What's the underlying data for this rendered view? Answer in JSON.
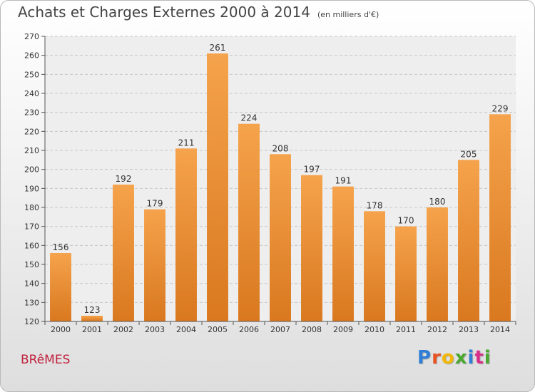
{
  "page": {
    "title": "Achats et Charges Externes 2000 à 2014",
    "unit_note": "(en milliers d'€)",
    "place_name": "BRêMES",
    "logo_text": "Proxiti",
    "logo_colors": [
      "#2f7fd6",
      "#e8531f",
      "#f2b705",
      "#4aa82e",
      "#2f7fd6",
      "#d62f8a",
      "#4aa82e"
    ]
  },
  "chart_data": {
    "type": "bar",
    "title": "Achats et Charges Externes 2000 à 2014",
    "subtitle": "(en milliers d'€)",
    "xlabel": "",
    "ylabel": "",
    "categories": [
      "2000",
      "2001",
      "2002",
      "2003",
      "2004",
      "2005",
      "2006",
      "2007",
      "2008",
      "2009",
      "2010",
      "2011",
      "2012",
      "2013",
      "2014"
    ],
    "values": [
      156,
      123,
      192,
      179,
      211,
      261,
      224,
      208,
      197,
      191,
      178,
      170,
      180,
      205,
      229
    ],
    "ylim": [
      120,
      270
    ],
    "yticks": [
      120,
      130,
      140,
      150,
      160,
      170,
      180,
      190,
      200,
      210,
      220,
      230,
      240,
      250,
      260,
      270
    ],
    "grid": true,
    "bar_color": "#f5a34c",
    "bar_color_dark": "#d9781f",
    "show_data_labels": true
  }
}
